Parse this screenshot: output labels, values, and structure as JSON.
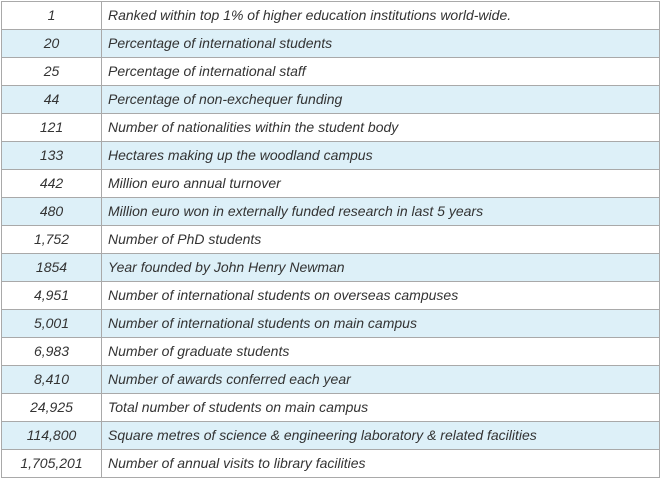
{
  "facts": [
    {
      "value": "1",
      "description": "Ranked within top 1% of higher education institutions world-wide."
    },
    {
      "value": "20",
      "description": "Percentage of international students"
    },
    {
      "value": "25",
      "description": "Percentage of international staff"
    },
    {
      "value": "44",
      "description": "Percentage of non-exchequer funding"
    },
    {
      "value": "121",
      "description": "Number of nationalities within the student body"
    },
    {
      "value": "133",
      "description": "Hectares making up the woodland campus"
    },
    {
      "value": "442",
      "description": "Million euro annual turnover"
    },
    {
      "value": "480",
      "description": "Million euro won in externally funded research in last 5 years"
    },
    {
      "value": "1,752",
      "description": "Number of PhD students"
    },
    {
      "value": "1854",
      "description": "Year founded by John Henry Newman"
    },
    {
      "value": "4,951",
      "description": "Number of international students on overseas campuses"
    },
    {
      "value": "5,001",
      "description": "Number of international students on main campus"
    },
    {
      "value": "6,983",
      "description": "Number of graduate students"
    },
    {
      "value": "8,410",
      "description": "Number of awards conferred each year"
    },
    {
      "value": "24,925",
      "description": "Total number of students on main campus"
    },
    {
      "value": "114,800",
      "description": "Square metres of science & engineering laboratory & related facilities"
    },
    {
      "value": "1,705,201",
      "description": "Number of annual visits to library facilities"
    }
  ],
  "colors": {
    "shaded_row": "#ddf0f8",
    "border": "#a9a9a9",
    "text": "#333333"
  }
}
